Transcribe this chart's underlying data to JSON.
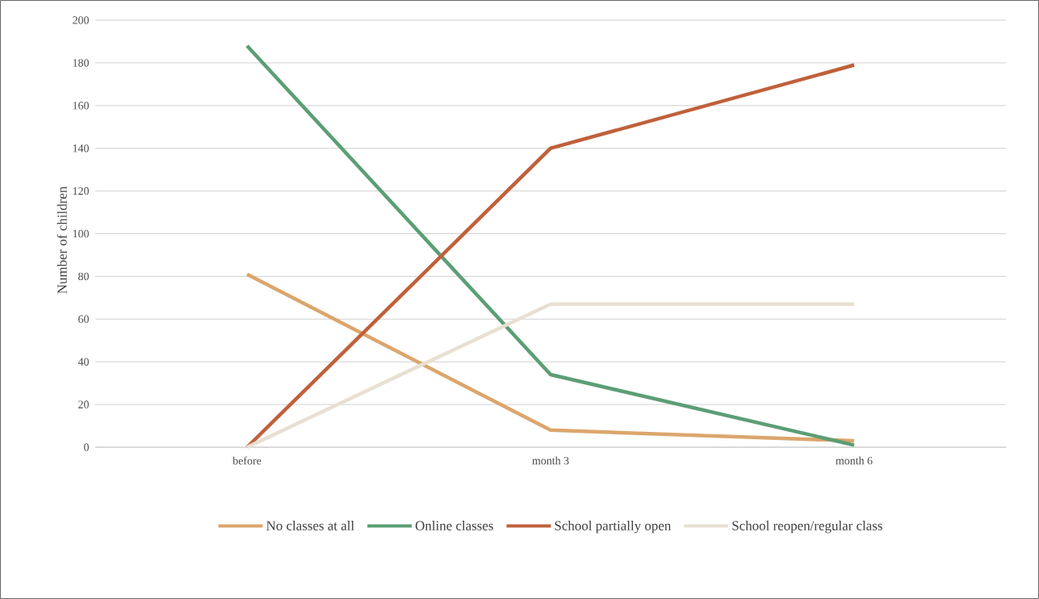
{
  "chart_data": {
    "type": "line",
    "ylabel": "Number of children",
    "categories": [
      "before",
      "month 3",
      "month 6"
    ],
    "series": [
      {
        "name": "No classes at all",
        "color": "#dba66c",
        "values": [
          81,
          8,
          3
        ]
      },
      {
        "name": "Online classes",
        "color": "#5c9e74",
        "values": [
          188,
          34,
          1
        ]
      },
      {
        "name": "School partially open",
        "color": "#c0603b",
        "values": [
          0,
          140,
          179
        ]
      },
      {
        "name": "School reopen/regular class",
        "color": "#e8e0d2",
        "values": [
          0,
          67,
          67
        ]
      }
    ],
    "ylim": [
      0,
      200
    ],
    "yticks": [
      0,
      20,
      40,
      60,
      80,
      100,
      120,
      140,
      160,
      180,
      200
    ],
    "grid": "y",
    "legend": "bottom",
    "marker": "none",
    "line_style": "solid"
  }
}
